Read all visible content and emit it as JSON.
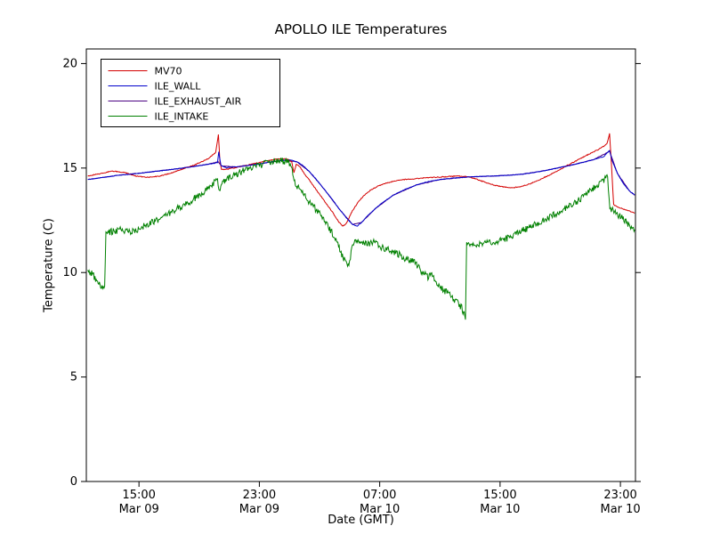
{
  "chart_data": {
    "type": "line",
    "title": "APOLLO ILE Temperatures",
    "xlabel": "Date (GMT)",
    "ylabel": "Temperature (C)",
    "x_unit": "hours since Mar 09 00:00 GMT",
    "xlim": [
      11.5,
      48.0
    ],
    "ylim": [
      0,
      20.7
    ],
    "grid": false,
    "legend_position": "upper-left",
    "yticks": [
      0,
      5,
      10,
      15,
      20
    ],
    "xticks": [
      {
        "value": 15,
        "time": "15:00",
        "date": "Mar 09"
      },
      {
        "value": 23,
        "time": "23:00",
        "date": "Mar 09"
      },
      {
        "value": 31,
        "time": "07:00",
        "date": "Mar 10"
      },
      {
        "value": 39,
        "time": "15:00",
        "date": "Mar 10"
      },
      {
        "value": 47,
        "time": "23:00",
        "date": "Mar 10"
      }
    ],
    "series": [
      {
        "name": "MV70",
        "color": "#d40000",
        "zorder": 2,
        "noise": 0.02,
        "points": [
          [
            11.6,
            14.62
          ],
          [
            12.3,
            14.72
          ],
          [
            13.2,
            14.85
          ],
          [
            14.0,
            14.8
          ],
          [
            14.8,
            14.62
          ],
          [
            15.6,
            14.55
          ],
          [
            16.4,
            14.62
          ],
          [
            17.2,
            14.78
          ],
          [
            18.0,
            14.98
          ],
          [
            18.8,
            15.18
          ],
          [
            19.6,
            15.45
          ],
          [
            20.1,
            15.75
          ],
          [
            20.28,
            16.62
          ],
          [
            20.38,
            15.3
          ],
          [
            20.48,
            14.92
          ],
          [
            20.9,
            14.95
          ],
          [
            21.6,
            15.05
          ],
          [
            22.3,
            15.15
          ],
          [
            23.0,
            15.27
          ],
          [
            23.7,
            15.38
          ],
          [
            24.4,
            15.45
          ],
          [
            24.9,
            15.42
          ],
          [
            25.15,
            15.32
          ],
          [
            25.3,
            14.78
          ],
          [
            25.45,
            15.18
          ],
          [
            25.7,
            15.05
          ],
          [
            26.0,
            14.72
          ],
          [
            26.4,
            14.35
          ],
          [
            26.9,
            13.85
          ],
          [
            27.4,
            13.35
          ],
          [
            27.9,
            12.85
          ],
          [
            28.25,
            12.45
          ],
          [
            28.55,
            12.22
          ],
          [
            28.8,
            12.35
          ],
          [
            29.1,
            12.85
          ],
          [
            29.5,
            13.3
          ],
          [
            29.9,
            13.65
          ],
          [
            30.4,
            13.95
          ],
          [
            31.0,
            14.18
          ],
          [
            31.8,
            14.35
          ],
          [
            32.6,
            14.45
          ],
          [
            33.5,
            14.5
          ],
          [
            34.4,
            14.55
          ],
          [
            35.3,
            14.58
          ],
          [
            36.2,
            14.62
          ],
          [
            36.8,
            14.6
          ],
          [
            37.4,
            14.48
          ],
          [
            38.0,
            14.32
          ],
          [
            38.6,
            14.18
          ],
          [
            39.2,
            14.1
          ],
          [
            39.8,
            14.05
          ],
          [
            40.4,
            14.12
          ],
          [
            41.0,
            14.25
          ],
          [
            41.8,
            14.5
          ],
          [
            42.6,
            14.78
          ],
          [
            43.4,
            15.1
          ],
          [
            44.2,
            15.4
          ],
          [
            45.0,
            15.7
          ],
          [
            45.7,
            15.95
          ],
          [
            46.1,
            16.15
          ],
          [
            46.28,
            16.65
          ],
          [
            46.4,
            15.2
          ],
          [
            46.55,
            13.25
          ],
          [
            46.9,
            13.1
          ],
          [
            47.4,
            13.0
          ],
          [
            47.95,
            12.85
          ]
        ]
      },
      {
        "name": "ILE_WALL",
        "color": "#0000cc",
        "zorder": 3,
        "noise": 0.012,
        "points": [
          [
            11.6,
            14.45
          ],
          [
            12.6,
            14.55
          ],
          [
            13.6,
            14.65
          ],
          [
            14.6,
            14.72
          ],
          [
            15.6,
            14.8
          ],
          [
            16.6,
            14.88
          ],
          [
            17.6,
            14.97
          ],
          [
            18.6,
            15.07
          ],
          [
            19.5,
            15.17
          ],
          [
            20.22,
            15.26
          ],
          [
            20.3,
            15.78
          ],
          [
            20.45,
            15.12
          ],
          [
            20.8,
            15.02
          ],
          [
            21.5,
            15.06
          ],
          [
            22.2,
            15.12
          ],
          [
            23.0,
            15.2
          ],
          [
            23.8,
            15.3
          ],
          [
            24.6,
            15.37
          ],
          [
            25.1,
            15.38
          ],
          [
            25.5,
            15.3
          ],
          [
            25.9,
            15.12
          ],
          [
            26.3,
            14.85
          ],
          [
            26.8,
            14.45
          ],
          [
            27.3,
            14.0
          ],
          [
            27.8,
            13.55
          ],
          [
            28.3,
            13.05
          ],
          [
            28.8,
            12.6
          ],
          [
            29.2,
            12.3
          ],
          [
            29.5,
            12.22
          ],
          [
            29.8,
            12.4
          ],
          [
            30.2,
            12.72
          ],
          [
            30.7,
            13.05
          ],
          [
            31.2,
            13.35
          ],
          [
            31.9,
            13.7
          ],
          [
            32.6,
            13.95
          ],
          [
            33.4,
            14.18
          ],
          [
            34.2,
            14.35
          ],
          [
            35.0,
            14.45
          ],
          [
            35.9,
            14.52
          ],
          [
            36.8,
            14.57
          ],
          [
            37.7,
            14.6
          ],
          [
            38.6,
            14.62
          ],
          [
            39.5,
            14.65
          ],
          [
            40.4,
            14.7
          ],
          [
            41.2,
            14.78
          ],
          [
            42.0,
            14.88
          ],
          [
            42.8,
            15.0
          ],
          [
            43.6,
            15.12
          ],
          [
            44.4,
            15.25
          ],
          [
            45.2,
            15.4
          ],
          [
            45.9,
            15.55
          ],
          [
            46.28,
            15.85
          ],
          [
            46.45,
            15.35
          ],
          [
            46.8,
            14.75
          ],
          [
            47.2,
            14.25
          ],
          [
            47.6,
            13.9
          ],
          [
            47.95,
            13.72
          ]
        ]
      },
      {
        "name": "ILE_EXHAUST_AIR",
        "color": "#4b0082",
        "zorder": 1,
        "noise": 0.012,
        "points": [
          [
            11.6,
            14.45
          ],
          [
            13.6,
            14.65
          ],
          [
            15.6,
            14.8
          ],
          [
            17.6,
            14.97
          ],
          [
            19.5,
            15.17
          ],
          [
            20.25,
            15.3
          ],
          [
            20.5,
            15.1
          ],
          [
            21.5,
            15.05
          ],
          [
            23.0,
            15.2
          ],
          [
            24.6,
            15.37
          ],
          [
            25.5,
            15.3
          ],
          [
            26.3,
            14.85
          ],
          [
            27.3,
            14.0
          ],
          [
            28.3,
            13.05
          ],
          [
            29.2,
            12.3
          ],
          [
            29.8,
            12.4
          ],
          [
            30.7,
            13.05
          ],
          [
            31.9,
            13.7
          ],
          [
            33.4,
            14.18
          ],
          [
            35.0,
            14.45
          ],
          [
            36.8,
            14.57
          ],
          [
            38.6,
            14.62
          ],
          [
            40.4,
            14.7
          ],
          [
            42.0,
            14.88
          ],
          [
            43.6,
            15.12
          ],
          [
            45.2,
            15.4
          ],
          [
            46.28,
            15.8
          ],
          [
            46.8,
            14.75
          ],
          [
            47.6,
            13.9
          ],
          [
            47.95,
            13.7
          ]
        ]
      },
      {
        "name": "ILE_INTAKE",
        "color": "#008000",
        "zorder": 4,
        "noise": 0.16,
        "points": [
          [
            11.6,
            10.05
          ],
          [
            11.9,
            9.95
          ],
          [
            12.2,
            9.6
          ],
          [
            12.5,
            9.3
          ],
          [
            12.72,
            9.2
          ],
          [
            12.8,
            11.9
          ],
          [
            13.2,
            11.95
          ],
          [
            13.8,
            12.05
          ],
          [
            14.4,
            11.95
          ],
          [
            15.0,
            12.1
          ],
          [
            15.6,
            12.3
          ],
          [
            16.3,
            12.55
          ],
          [
            17.0,
            12.85
          ],
          [
            17.8,
            13.15
          ],
          [
            18.6,
            13.5
          ],
          [
            19.3,
            13.85
          ],
          [
            19.9,
            14.25
          ],
          [
            20.22,
            14.5
          ],
          [
            20.35,
            13.95
          ],
          [
            20.6,
            14.3
          ],
          [
            21.0,
            14.55
          ],
          [
            21.7,
            14.8
          ],
          [
            22.4,
            15.0
          ],
          [
            23.1,
            15.15
          ],
          [
            23.8,
            15.3
          ],
          [
            24.4,
            15.35
          ],
          [
            24.9,
            15.28
          ],
          [
            25.1,
            15.15
          ],
          [
            25.35,
            14.35
          ],
          [
            25.6,
            14.05
          ],
          [
            26.0,
            13.65
          ],
          [
            26.5,
            13.25
          ],
          [
            27.0,
            12.8
          ],
          [
            27.5,
            12.3
          ],
          [
            28.0,
            11.7
          ],
          [
            28.35,
            11.1
          ],
          [
            28.65,
            10.6
          ],
          [
            28.95,
            10.3
          ],
          [
            29.15,
            11.1
          ],
          [
            29.35,
            11.6
          ],
          [
            29.7,
            11.5
          ],
          [
            30.1,
            11.35
          ],
          [
            30.6,
            11.45
          ],
          [
            31.1,
            11.2
          ],
          [
            31.7,
            11.05
          ],
          [
            32.3,
            10.85
          ],
          [
            32.9,
            10.6
          ],
          [
            33.4,
            10.45
          ],
          [
            33.9,
            9.95
          ],
          [
            34.25,
            9.75
          ],
          [
            34.5,
            9.95
          ],
          [
            34.8,
            9.5
          ],
          [
            35.2,
            9.2
          ],
          [
            35.7,
            8.9
          ],
          [
            36.1,
            8.6
          ],
          [
            36.45,
            8.3
          ],
          [
            36.7,
            7.85
          ],
          [
            36.78,
            11.3
          ],
          [
            37.3,
            11.35
          ],
          [
            38.0,
            11.4
          ],
          [
            38.8,
            11.5
          ],
          [
            39.5,
            11.65
          ],
          [
            40.2,
            11.9
          ],
          [
            40.9,
            12.15
          ],
          [
            41.6,
            12.4
          ],
          [
            42.3,
            12.65
          ],
          [
            43.0,
            12.9
          ],
          [
            43.7,
            13.2
          ],
          [
            44.4,
            13.55
          ],
          [
            45.0,
            13.9
          ],
          [
            45.5,
            14.2
          ],
          [
            45.9,
            14.45
          ],
          [
            46.15,
            14.6
          ],
          [
            46.3,
            13.05
          ],
          [
            46.7,
            12.85
          ],
          [
            47.1,
            12.6
          ],
          [
            47.5,
            12.35
          ],
          [
            47.95,
            12.05
          ]
        ]
      }
    ]
  }
}
